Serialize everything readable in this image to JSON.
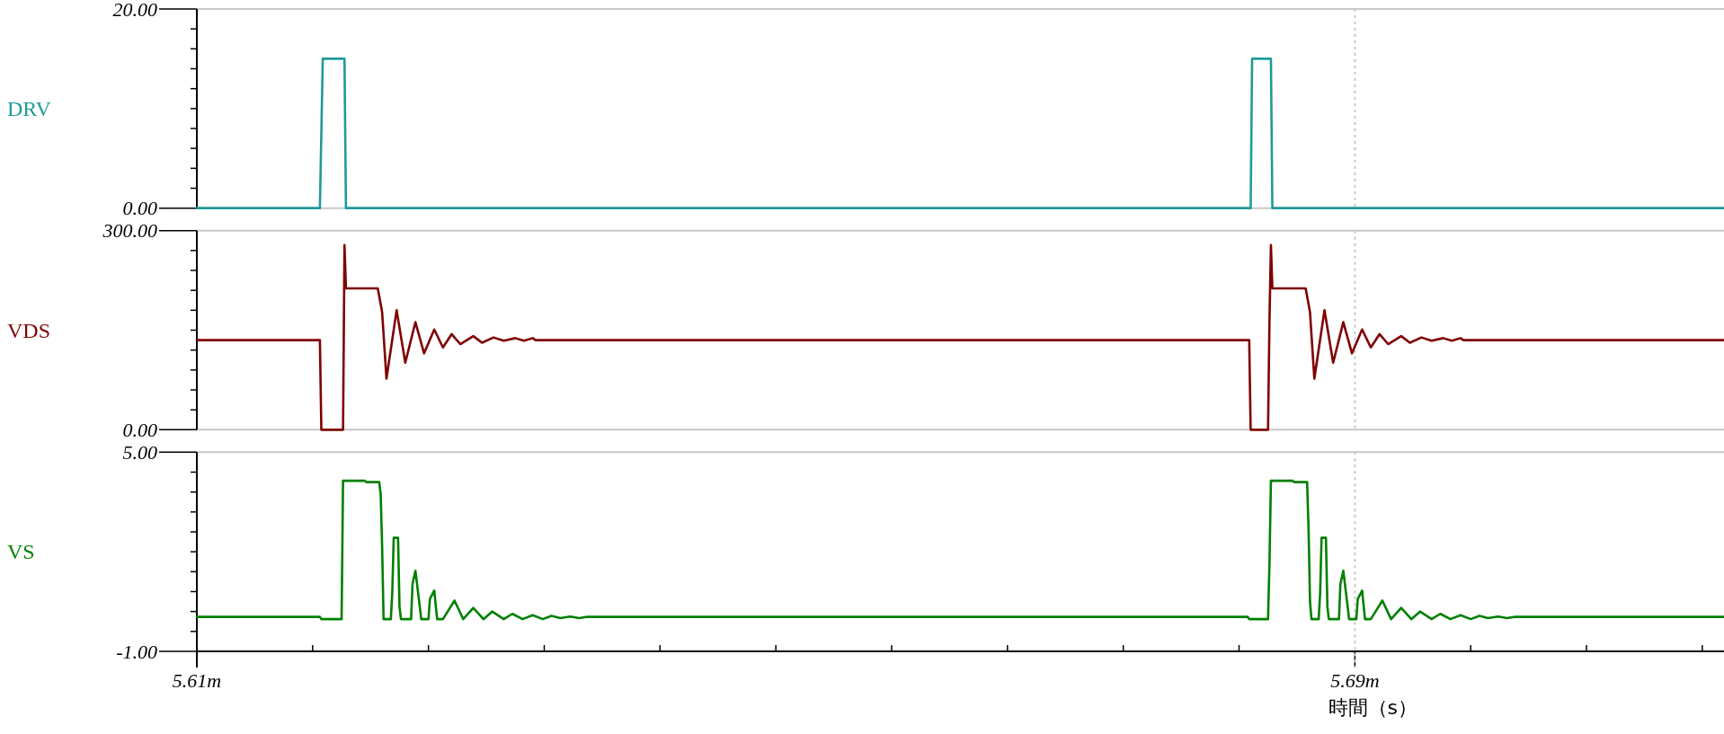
{
  "chart_data": [
    {
      "type": "line",
      "xlim": [
        5.61,
        5.7155
      ],
      "ylim": [
        0,
        20
      ],
      "yticks": [
        {
          "value": 20,
          "label": "20.00"
        },
        {
          "value": 18,
          "label": null
        },
        {
          "value": 16,
          "label": null
        },
        {
          "value": 14,
          "label": null
        },
        {
          "value": 12,
          "label": null
        },
        {
          "value": 10,
          "label": null
        },
        {
          "value": 8,
          "label": null
        },
        {
          "value": 6,
          "label": null
        },
        {
          "value": 4,
          "label": null
        },
        {
          "value": 2,
          "label": null
        },
        {
          "value": 0,
          "label": "0.00"
        }
      ],
      "tick_labels": "y",
      "ref_lines": [
        {
          "axis": "x",
          "value": 5.69,
          "color": "#c8c8c8",
          "line_style": "dotted"
        }
      ],
      "series": [
        {
          "name": "DRV",
          "color": "#1f9a9a",
          "x": [
            5.61,
            5.6185,
            5.6187,
            5.6202,
            5.6203,
            5.6828,
            5.6829,
            5.6842,
            5.6843,
            5.7155
          ],
          "values": [
            0,
            0,
            15,
            15,
            0,
            0,
            15,
            15,
            0,
            0
          ]
        }
      ]
    },
    {
      "type": "line",
      "xlim": [
        5.61,
        5.7155
      ],
      "ylim": [
        0,
        300
      ],
      "yticks": [
        {
          "value": 300,
          "label": "300.00"
        },
        {
          "value": 270,
          "label": null
        },
        {
          "value": 240,
          "label": null
        },
        {
          "value": 210,
          "label": null
        },
        {
          "value": 180,
          "label": null
        },
        {
          "value": 150,
          "label": null
        },
        {
          "value": 120,
          "label": null
        },
        {
          "value": 90,
          "label": null
        },
        {
          "value": 60,
          "label": null
        },
        {
          "value": 30,
          "label": null
        },
        {
          "value": 0,
          "label": "0.00"
        }
      ],
      "tick_labels": "y",
      "ref_lines": [
        {
          "axis": "x",
          "value": 5.69,
          "color": "#c8c8c8",
          "line_style": "dotted"
        }
      ],
      "series": [
        {
          "name": "VDS",
          "color": "#800000",
          "x": [
            5.61,
            5.6185,
            5.6186,
            5.6201,
            5.6202,
            5.6203,
            5.6225,
            5.6228,
            5.6231,
            5.6238,
            5.6244,
            5.6251,
            5.6257,
            5.6264,
            5.627,
            5.6276,
            5.6282,
            5.6291,
            5.6297,
            5.6305,
            5.6312,
            5.632,
            5.6326,
            5.6332,
            5.6334,
            5.6827,
            5.6828,
            5.684,
            5.6841,
            5.6842,
            5.6843,
            5.6866,
            5.6869,
            5.6872,
            5.6879,
            5.6885,
            5.6892,
            5.6898,
            5.6905,
            5.6911,
            5.6917,
            5.6923,
            5.6932,
            5.6938,
            5.6946,
            5.6953,
            5.6961,
            5.6967,
            5.6973,
            5.6975,
            5.7155
          ],
          "values": [
            135,
            135,
            0,
            0,
            278,
            213,
            213,
            177,
            77,
            180,
            101,
            162,
            115,
            151,
            124,
            144,
            129,
            141,
            131,
            139,
            134,
            138,
            134,
            138,
            135,
            135,
            0,
            0,
            165,
            278,
            213,
            213,
            177,
            77,
            180,
            101,
            162,
            115,
            151,
            124,
            144,
            129,
            141,
            131,
            139,
            134,
            138,
            134,
            138,
            135,
            135
          ]
        }
      ]
    },
    {
      "type": "line",
      "xlim": [
        5.61,
        5.7155
      ],
      "ylim": [
        -1,
        5
      ],
      "xlabel": "時間（s）",
      "xticks": [
        {
          "value": 5.61,
          "label": "5.61m"
        },
        {
          "value": 5.618,
          "label": null
        },
        {
          "value": 5.626,
          "label": null
        },
        {
          "value": 5.634,
          "label": null
        },
        {
          "value": 5.642,
          "label": null
        },
        {
          "value": 5.65,
          "label": null
        },
        {
          "value": 5.658,
          "label": null
        },
        {
          "value": 5.666,
          "label": null
        },
        {
          "value": 5.674,
          "label": null
        },
        {
          "value": 5.682,
          "label": null
        },
        {
          "value": 5.69,
          "label": "5.69m"
        },
        {
          "value": 5.698,
          "label": null
        },
        {
          "value": 5.706,
          "label": null
        },
        {
          "value": 5.714,
          "label": null
        }
      ],
      "yticks": [
        {
          "value": 5,
          "label": "5.00"
        },
        {
          "value": 4.4,
          "label": null
        },
        {
          "value": 3.8,
          "label": null
        },
        {
          "value": 3.2,
          "label": null
        },
        {
          "value": 2.6,
          "label": null
        },
        {
          "value": 2,
          "label": null
        },
        {
          "value": 1.4,
          "label": null
        },
        {
          "value": 0.8,
          "label": null
        },
        {
          "value": 0.2,
          "label": null
        },
        {
          "value": -0.4,
          "label": null
        },
        {
          "value": -1,
          "label": "-1.00"
        }
      ],
      "ref_lines": [
        {
          "axis": "x",
          "value": 5.69,
          "color": "#c8c8c8",
          "line_style": "dotted"
        }
      ],
      "series": [
        {
          "name": "VS",
          "color": "#008000",
          "x": [
            5.61,
            5.6185,
            5.6186,
            5.62,
            5.6201,
            5.6216,
            5.6217,
            5.6226,
            5.6227,
            5.6228,
            5.6229,
            5.6234,
            5.6235,
            5.6236,
            5.6239,
            5.624,
            5.6241,
            5.6248,
            5.6249,
            5.6251,
            5.6254,
            5.6255,
            5.626,
            5.6261,
            5.6264,
            5.6266,
            5.627,
            5.6278,
            5.6284,
            5.6291,
            5.6298,
            5.6304,
            5.6312,
            5.6318,
            5.6325,
            5.6332,
            5.6339,
            5.6345,
            5.6351,
            5.6358,
            5.6364,
            5.637,
            5.6826,
            5.6827,
            5.684,
            5.6841,
            5.6842,
            5.6857,
            5.6858,
            5.6867,
            5.6868,
            5.6869,
            5.687,
            5.6875,
            5.6876,
            5.6877,
            5.688,
            5.6881,
            5.6882,
            5.6889,
            5.689,
            5.6892,
            5.6895,
            5.6896,
            5.6901,
            5.6902,
            5.6905,
            5.6907,
            5.6911,
            5.6919,
            5.6925,
            5.6932,
            5.6939,
            5.6945,
            5.6953,
            5.6959,
            5.6966,
            5.6973,
            5.698,
            5.6986,
            5.6992,
            5.6999,
            5.7005,
            5.7011,
            5.7155
          ],
          "values": [
            0.04,
            0.04,
            -0.03,
            -0.03,
            4.14,
            4.14,
            4.1,
            4.1,
            3.73,
            2.15,
            -0.03,
            -0.03,
            0.76,
            2.42,
            2.42,
            0.35,
            -0.03,
            -0.03,
            1.03,
            1.43,
            0.35,
            -0.03,
            -0.03,
            0.58,
            0.83,
            -0.03,
            -0.03,
            0.53,
            -0.03,
            0.31,
            -0.03,
            0.2,
            -0.03,
            0.13,
            -0.03,
            0.09,
            -0.03,
            0.07,
            0.0,
            0.05,
            0.0,
            0.04,
            0.04,
            -0.03,
            -0.03,
            1.66,
            4.14,
            4.14,
            4.1,
            4.1,
            2.69,
            0.5,
            -0.03,
            -0.03,
            0.76,
            2.42,
            2.42,
            0.35,
            -0.03,
            -0.03,
            1.03,
            1.43,
            0.35,
            -0.03,
            -0.03,
            0.58,
            0.83,
            -0.03,
            -0.03,
            0.53,
            -0.03,
            0.31,
            -0.03,
            0.2,
            -0.03,
            0.13,
            -0.03,
            0.09,
            -0.03,
            0.07,
            0.0,
            0.05,
            0.0,
            0.04,
            0.04
          ]
        }
      ]
    }
  ]
}
